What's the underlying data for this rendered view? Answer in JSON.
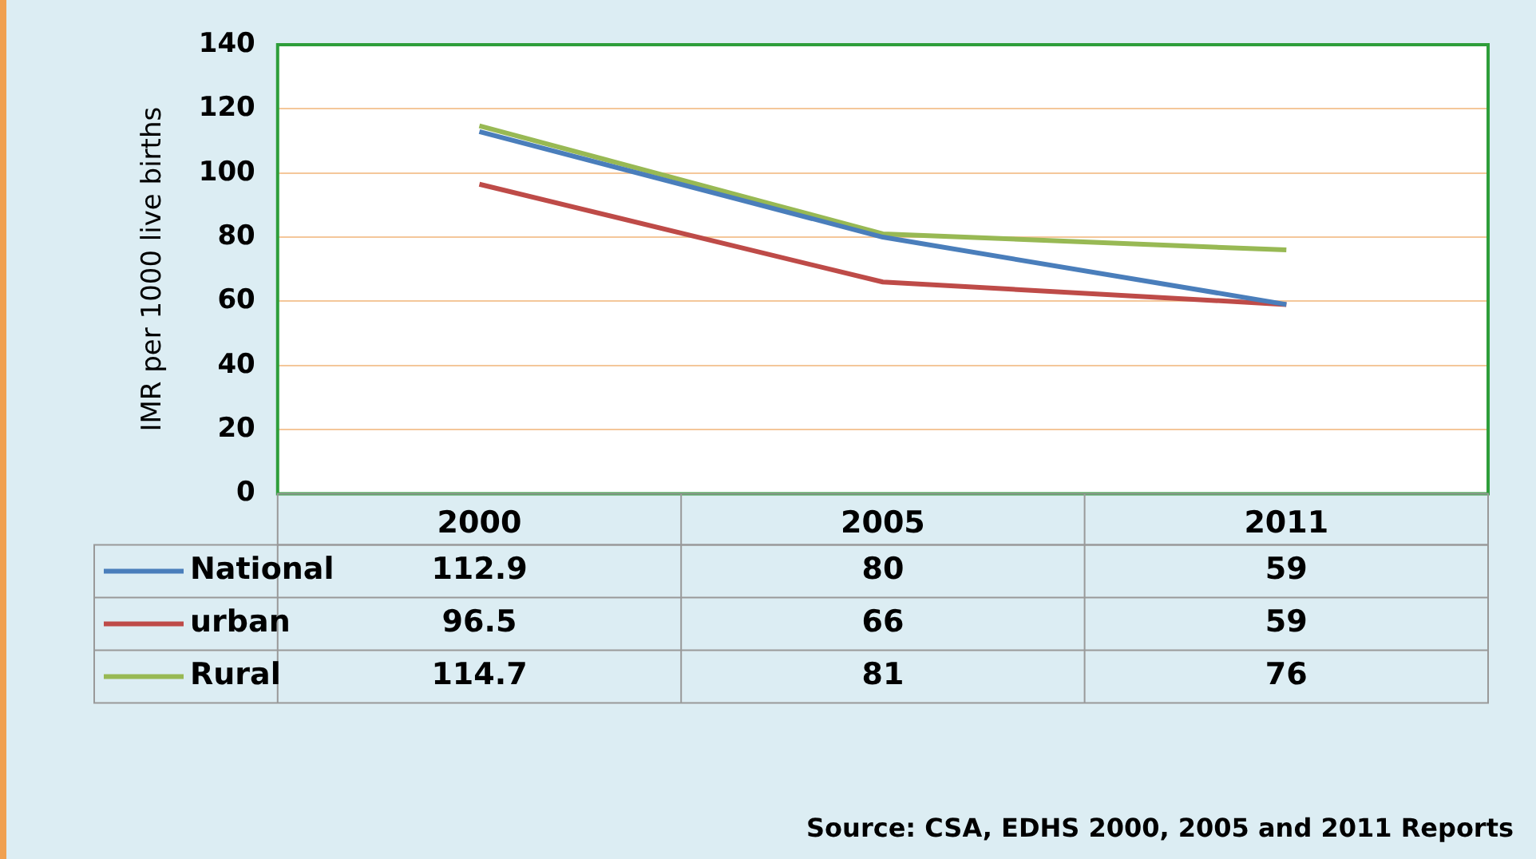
{
  "chart_data": {
    "type": "line",
    "ylabel": "IMR per 1000 live births",
    "categories": [
      "2000",
      "2005",
      "2011"
    ],
    "series": [
      {
        "name": "National",
        "color": "#4a7ebb",
        "values": [
          112.9,
          80,
          59
        ]
      },
      {
        "name": "urban",
        "color": "#be4b48",
        "values": [
          96.5,
          66,
          59
        ]
      },
      {
        "name": "Rural",
        "color": "#98b954",
        "values": [
          114.7,
          81,
          76
        ]
      }
    ],
    "ylim": [
      0,
      140
    ],
    "yticks": [
      0,
      20,
      40,
      60,
      80,
      100,
      120,
      140
    ],
    "grid": "y",
    "legend": "bottom",
    "marker": "none",
    "line_style": "solid",
    "data_labels": true,
    "annotations": [
      "Source: CSA, EDHS 2000, 2005 and 2011 Reports"
    ]
  }
}
